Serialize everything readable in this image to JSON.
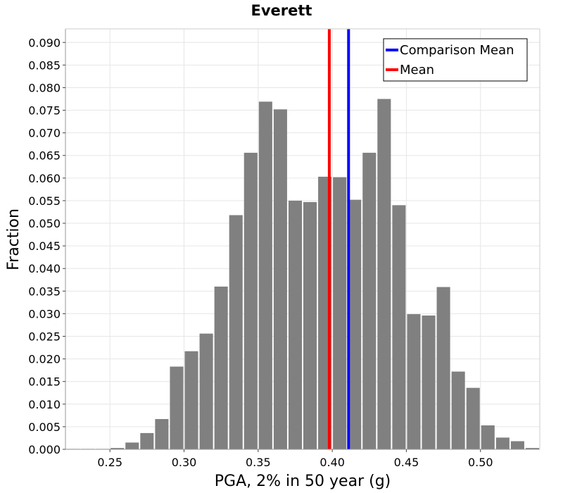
{
  "chart_data": {
    "type": "bar",
    "title": "Everett",
    "xlabel": "PGA, 2% in 50 year (g)",
    "ylabel": "Fraction",
    "xlim": [
      0.22,
      0.54
    ],
    "ylim": [
      0,
      0.093
    ],
    "grid": true,
    "legend_position": "top-right",
    "bin_width": 0.01,
    "bar_color": "#808080",
    "x_ticks": [
      "0.25",
      "0.30",
      "0.35",
      "0.40",
      "0.45",
      "0.50"
    ],
    "y_ticks": [
      "0.000",
      "0.005",
      "0.010",
      "0.015",
      "0.020",
      "0.025",
      "0.030",
      "0.035",
      "0.040",
      "0.045",
      "0.050",
      "0.055",
      "0.060",
      "0.065",
      "0.070",
      "0.075",
      "0.080",
      "0.085",
      "0.090"
    ],
    "bins": [
      {
        "x": 0.225,
        "value": 0.0001
      },
      {
        "x": 0.235,
        "value": 0.0001
      },
      {
        "x": 0.245,
        "value": 0.0001
      },
      {
        "x": 0.255,
        "value": 0.0003
      },
      {
        "x": 0.265,
        "value": 0.0015
      },
      {
        "x": 0.275,
        "value": 0.0036
      },
      {
        "x": 0.285,
        "value": 0.0067
      },
      {
        "x": 0.295,
        "value": 0.0183
      },
      {
        "x": 0.305,
        "value": 0.0217
      },
      {
        "x": 0.315,
        "value": 0.0256
      },
      {
        "x": 0.325,
        "value": 0.036
      },
      {
        "x": 0.335,
        "value": 0.0518
      },
      {
        "x": 0.345,
        "value": 0.0656
      },
      {
        "x": 0.355,
        "value": 0.0769
      },
      {
        "x": 0.365,
        "value": 0.0752
      },
      {
        "x": 0.375,
        "value": 0.055
      },
      {
        "x": 0.385,
        "value": 0.0547
      },
      {
        "x": 0.395,
        "value": 0.0603
      },
      {
        "x": 0.405,
        "value": 0.0602
      },
      {
        "x": 0.415,
        "value": 0.0552
      },
      {
        "x": 0.425,
        "value": 0.0656
      },
      {
        "x": 0.435,
        "value": 0.0775
      },
      {
        "x": 0.445,
        "value": 0.054
      },
      {
        "x": 0.455,
        "value": 0.0299
      },
      {
        "x": 0.465,
        "value": 0.0296
      },
      {
        "x": 0.475,
        "value": 0.0359
      },
      {
        "x": 0.485,
        "value": 0.0172
      },
      {
        "x": 0.495,
        "value": 0.0136
      },
      {
        "x": 0.505,
        "value": 0.0053
      },
      {
        "x": 0.515,
        "value": 0.0026
      },
      {
        "x": 0.525,
        "value": 0.0018
      },
      {
        "x": 0.535,
        "value": 0.0003
      }
    ],
    "series": [
      {
        "name": "Comparison Mean",
        "type": "vline",
        "x": 0.411,
        "color": "#0000ff"
      },
      {
        "name": "Mean",
        "type": "vline",
        "x": 0.398,
        "color": "#ff0000"
      }
    ]
  }
}
